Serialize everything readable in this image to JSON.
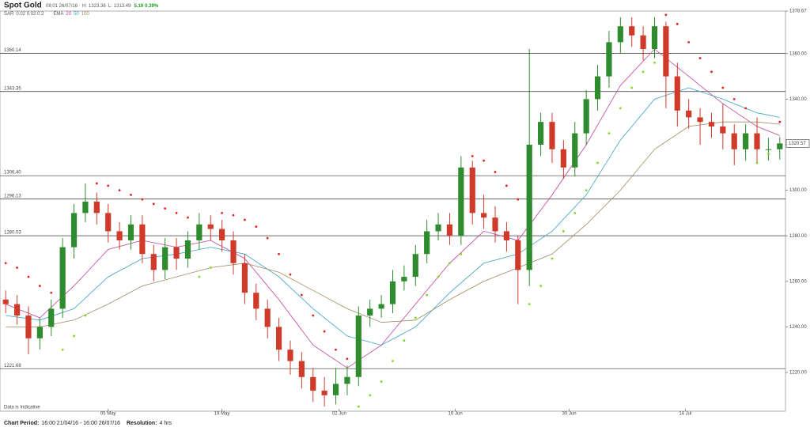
{
  "chart_data": {
    "type": "candlestick",
    "title": "Spot Gold",
    "header": {
      "time": "09:01 26/07/16",
      "high_label": "H:",
      "low_label": "L:",
      "change": "5.19",
      "change_pct": "0.39%"
    },
    "xlim": [
      -0.5,
      68.5
    ],
    "xticks": [
      {
        "value": 9,
        "label": "05 May"
      },
      {
        "value": 19,
        "label": "19 May"
      },
      {
        "value": 29.3,
        "label": "02 Jun"
      },
      {
        "value": 39.5,
        "label": "16 Jun"
      },
      {
        "value": 49.5,
        "label": "30 Jun"
      },
      {
        "value": 59.7,
        "label": "14 Jul"
      }
    ],
    "ylim": [
      1203,
      1378.67
    ],
    "yticks": [
      {
        "value": 1220,
        "label": "1220.00"
      },
      {
        "value": 1240,
        "label": "1240.00"
      },
      {
        "value": 1260,
        "label": "1260.00"
      },
      {
        "value": 1280,
        "label": "1280.00"
      },
      {
        "value": 1300,
        "label": "1300.00"
      },
      {
        "value": 1320,
        "label": "1320.00"
      },
      {
        "value": 1340,
        "label": "1340.00"
      },
      {
        "value": 1360,
        "label": "1360.00"
      },
      1378.67
    ],
    "up_color": "#2e8b2e",
    "down_color": "#d03a2a",
    "open": [
      1252,
      1250,
      1245,
      1235,
      1240,
      1248,
      1275,
      1290,
      1295,
      1290,
      1282,
      1278,
      1285,
      1272,
      1265,
      1275,
      1270,
      1278,
      1285,
      1283,
      1278,
      1268,
      1255,
      1248,
      1240,
      1230,
      1225,
      1218,
      1212,
      1210,
      1215,
      1218,
      1245,
      1248,
      1250,
      1260,
      1262,
      1272,
      1282,
      1285,
      1280,
      1310,
      1290,
      1288,
      1282,
      1278,
      1265,
      1320,
      1330,
      1318,
      1310,
      1325,
      1340,
      1350,
      1365,
      1372,
      1368,
      1362,
      1372,
      1350,
      1335,
      1332,
      1330,
      1328,
      1325,
      1318,
      1325,
      1318,
      1318
    ],
    "high": [
      1256,
      1254,
      1249,
      1244,
      1252,
      1279,
      1294,
      1303,
      1299,
      1294,
      1286,
      1289,
      1289,
      1276,
      1279,
      1279,
      1282,
      1290,
      1289,
      1287,
      1282,
      1272,
      1259,
      1252,
      1244,
      1234,
      1229,
      1222,
      1218,
      1222,
      1223,
      1249,
      1252,
      1254,
      1265,
      1267,
      1276,
      1287,
      1290,
      1290,
      1315,
      1313,
      1298,
      1293,
      1286,
      1280,
      1362,
      1334,
      1334,
      1322,
      1330,
      1344,
      1355,
      1370,
      1376,
      1376,
      1372,
      1376,
      1374,
      1356,
      1340,
      1336,
      1334,
      1338,
      1329,
      1329,
      1332,
      1323,
      1323.36
    ],
    "low": [
      1246,
      1241,
      1228,
      1230,
      1236,
      1244,
      1270,
      1286,
      1285,
      1277,
      1274,
      1274,
      1268,
      1260,
      1261,
      1265,
      1266,
      1274,
      1278,
      1273,
      1263,
      1250,
      1243,
      1235,
      1225,
      1219,
      1213,
      1207,
      1205,
      1206,
      1210,
      1214,
      1240,
      1244,
      1246,
      1256,
      1258,
      1268,
      1278,
      1276,
      1276,
      1285,
      1283,
      1277,
      1273,
      1250,
      1258,
      1315,
      1312,
      1305,
      1306,
      1320,
      1335,
      1345,
      1360,
      1363,
      1357,
      1358,
      1336,
      1328,
      1327,
      1320,
      1323,
      1318,
      1311,
      1313,
      1312,
      1313,
      1313.49
    ],
    "close": [
      1250,
      1245,
      1235,
      1240,
      1248,
      1275,
      1290,
      1295,
      1290,
      1282,
      1278,
      1285,
      1272,
      1265,
      1275,
      1270,
      1278,
      1285,
      1283,
      1278,
      1268,
      1255,
      1248,
      1240,
      1230,
      1225,
      1218,
      1212,
      1210,
      1215,
      1218,
      1245,
      1248,
      1250,
      1260,
      1262,
      1272,
      1282,
      1285,
      1280,
      1310,
      1290,
      1288,
      1282,
      1278,
      1265,
      1320,
      1330,
      1318,
      1310,
      1325,
      1340,
      1350,
      1365,
      1372,
      1368,
      1362,
      1372,
      1350,
      1335,
      1332,
      1330,
      1328,
      1325,
      1318,
      1325,
      1318,
      1318,
      1320.57
    ],
    "sar": {
      "name": "SAR",
      "params": "0.02 0.02 0.2",
      "above_color": "#e02020",
      "below_color": "#7fd81f",
      "values": [
        1268,
        1266,
        1262,
        1258,
        1255,
        1230,
        1236,
        1245,
        1303,
        1302,
        1300,
        1298,
        1296,
        1294,
        1292,
        1290,
        1288,
        1262,
        1266,
        1290,
        1289,
        1287,
        1284,
        1279,
        1272,
        1263,
        1254,
        1245,
        1238,
        1230,
        1226,
        1205,
        1210,
        1216,
        1225,
        1234,
        1244,
        1254,
        1262,
        1268,
        1272,
        1315,
        1313,
        1308,
        1302,
        1296,
        1250,
        1258,
        1270,
        1282,
        1290,
        1300,
        1312,
        1325,
        1336,
        1345,
        1352,
        1356,
        1377,
        1373,
        1365,
        1358,
        1352,
        1345,
        1340,
        1336,
        1312,
        1316,
        1330
      ]
    },
    "ema_label": "EMA",
    "overlays": [
      {
        "name": "20",
        "color": "#c2409a",
        "x": [
          0,
          3,
          6,
          9,
          12,
          15,
          18,
          21,
          24,
          27,
          30,
          33,
          36,
          39,
          42,
          45,
          48,
          51,
          54,
          57,
          60,
          63,
          66,
          68
        ],
        "values": [
          1250,
          1244,
          1258,
          1274,
          1278,
          1275,
          1278,
          1270,
          1252,
          1232,
          1222,
          1232,
          1250,
          1268,
          1282,
          1278,
          1298,
          1320,
          1346,
          1362,
          1350,
          1338,
          1328,
          1324
        ]
      },
      {
        "name": "50",
        "color": "#3aa0c8",
        "x": [
          0,
          3,
          6,
          9,
          12,
          15,
          18,
          21,
          24,
          27,
          30,
          33,
          36,
          39,
          42,
          45,
          48,
          51,
          54,
          57,
          60,
          63,
          66,
          68
        ],
        "values": [
          1245,
          1243,
          1248,
          1262,
          1270,
          1272,
          1275,
          1272,
          1262,
          1248,
          1236,
          1232,
          1240,
          1255,
          1268,
          1272,
          1282,
          1298,
          1322,
          1340,
          1345,
          1340,
          1334,
          1332
        ]
      },
      {
        "name": "100",
        "color": "#a08a60",
        "x": [
          0,
          3,
          6,
          9,
          12,
          15,
          18,
          21,
          24,
          27,
          30,
          33,
          36,
          39,
          42,
          45,
          48,
          51,
          54,
          57,
          60,
          63,
          66,
          68
        ],
        "values": [
          1240,
          1240,
          1243,
          1250,
          1258,
          1262,
          1266,
          1268,
          1264,
          1256,
          1248,
          1242,
          1243,
          1252,
          1260,
          1266,
          1272,
          1285,
          1300,
          1318,
          1328,
          1330,
          1330,
          1329
        ]
      }
    ],
    "levels": [
      1360.14,
      1343.35,
      {
        "value": 1306.4,
        "label": "1306.40"
      },
      1296.13,
      1280.03,
      1221.68
    ],
    "note": "Data is Indicative",
    "footer": {
      "period_label": "Chart Period:",
      "period": "16:00 21/04/16 - 16:00 26/07/16",
      "resolution_label": "Resolution:",
      "resolution": "4 hrs"
    }
  }
}
